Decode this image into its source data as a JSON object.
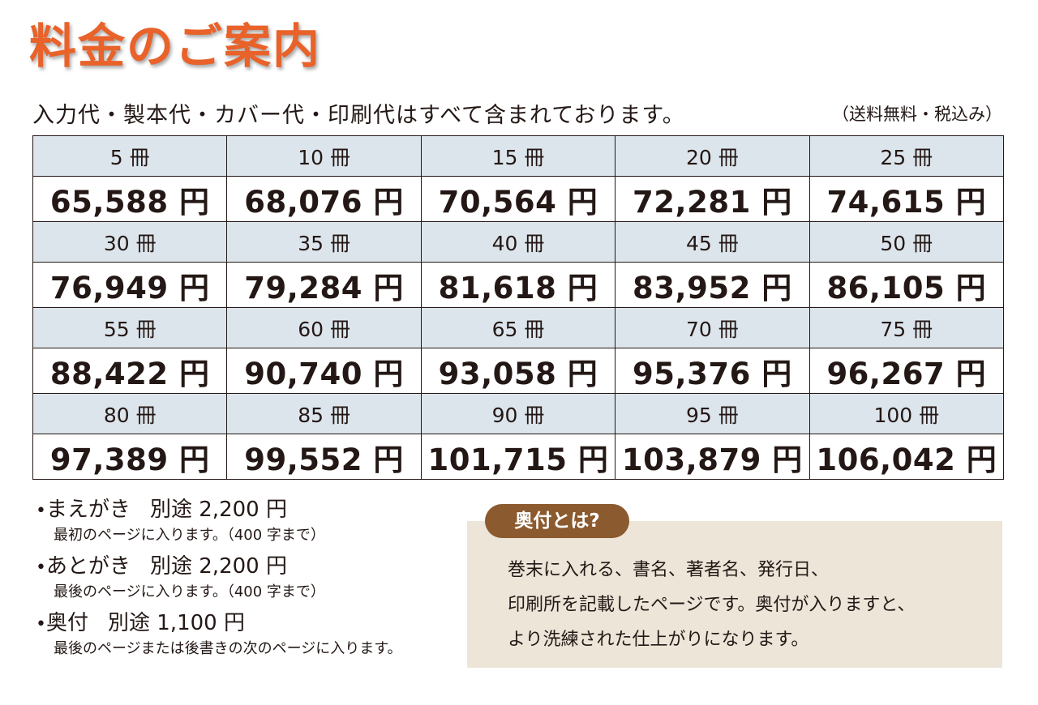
{
  "title": "料金のご案内",
  "subtitle": "入力代・製本代・カバー代・印刷代はすべて含まれております。",
  "tax_note": "（送料無料・税込み）",
  "price_table": [
    {
      "quantities": [
        "5 冊",
        "10 冊",
        "15 冊",
        "20 冊",
        "25 冊"
      ],
      "prices": [
        "65,588 円",
        "68,076 円",
        "70,564 円",
        "72,281 円",
        "74,615 円"
      ]
    },
    {
      "quantities": [
        "30 冊",
        "35 冊",
        "40 冊",
        "45 冊",
        "50 冊"
      ],
      "prices": [
        "76,949 円",
        "79,284 円",
        "81,618 円",
        "83,952 円",
        "86,105 円"
      ]
    },
    {
      "quantities": [
        "55 冊",
        "60 冊",
        "65 冊",
        "70 冊",
        "75 冊"
      ],
      "prices": [
        "88,422 円",
        "90,740 円",
        "93,058 円",
        "95,376 円",
        "96,267 円"
      ]
    },
    {
      "quantities": [
        "80 冊",
        "85 冊",
        "90 冊",
        "95 冊",
        "100 冊"
      ],
      "prices": [
        "97,389 円",
        "99,552 円",
        "101,715 円",
        "103,879 円",
        "106,042 円"
      ]
    }
  ],
  "options": [
    {
      "bullet": "•",
      "label": "まえがき",
      "price": "別途 2,200 円",
      "desc": "最初のページに入ります。（400 字まで）"
    },
    {
      "bullet": "•",
      "label": "あとがき",
      "price": "別途 2,200 円",
      "desc": "最後のページに入ります。（400 字まで）"
    },
    {
      "bullet": "•",
      "label": "奥付",
      "price": "別途 1,100 円",
      "desc": "最後のページまたは後書きの次のページに入ります。"
    }
  ],
  "okuzuke": {
    "badge": "奥付とは?",
    "lines": [
      "巻末に入れる、書名、著者名、発行日、",
      "印刷所を記載したページです。奥付が入りますと、",
      "より洗練された仕上がりになります。"
    ]
  },
  "colors": {
    "title": "#e8622a",
    "header_row_bg": "#dde5ec",
    "box_bg": "#ece5d8",
    "badge_bg": "#8b5a2e"
  }
}
